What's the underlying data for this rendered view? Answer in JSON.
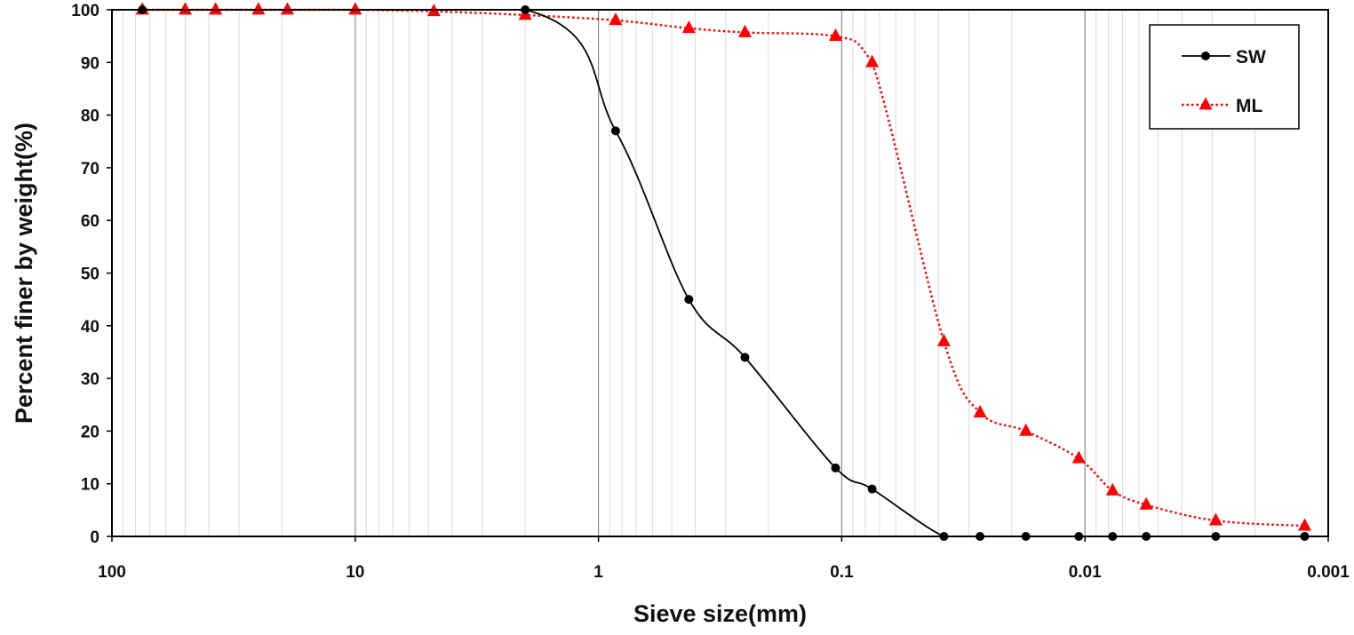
{
  "chart_data": {
    "type": "line",
    "xscale": "log",
    "xaxis_reversed": true,
    "xlim": [
      100,
      0.001
    ],
    "ylim": [
      0,
      100
    ],
    "xlabel": "Sieve size(mm)",
    "ylabel": "Percent finer by weight(%)",
    "x_ticks": [
      100,
      10,
      1,
      0.1,
      0.01,
      0.001
    ],
    "x_tick_labels": [
      "100",
      "10",
      "1",
      "0.1",
      "0.01",
      "0.001"
    ],
    "y_ticks": [
      0,
      10,
      20,
      30,
      40,
      50,
      60,
      70,
      80,
      90,
      100
    ],
    "grid": "log-minor vertical, major vertical",
    "legend_position": "top-right",
    "series": [
      {
        "name": "SW",
        "color": "#000000",
        "line_style": "solid",
        "marker": "circle",
        "x": [
          75,
          2,
          0.85,
          0.425,
          0.25,
          0.106,
          0.075,
          0.038,
          0.027,
          0.0175,
          0.0106,
          0.0077,
          0.0056,
          0.0029,
          0.00125
        ],
        "y": [
          100,
          100,
          77,
          45,
          34,
          13,
          9,
          0,
          0,
          0,
          0,
          0,
          0,
          0,
          0
        ]
      },
      {
        "name": "ML",
        "color": "#ff0000",
        "line_style": "dotted",
        "marker": "triangle",
        "x": [
          75,
          50,
          37.5,
          25,
          19,
          10,
          4.75,
          2,
          0.85,
          0.425,
          0.25,
          0.106,
          0.075,
          0.038,
          0.027,
          0.0175,
          0.0106,
          0.0077,
          0.0056,
          0.0029,
          0.00125
        ],
        "y": [
          100,
          100,
          100,
          100,
          100,
          100,
          99.7,
          99,
          98,
          96.5,
          95.7,
          95,
          90,
          37,
          23.5,
          20,
          14.8,
          8.7,
          6,
          3,
          2
        ]
      }
    ]
  }
}
